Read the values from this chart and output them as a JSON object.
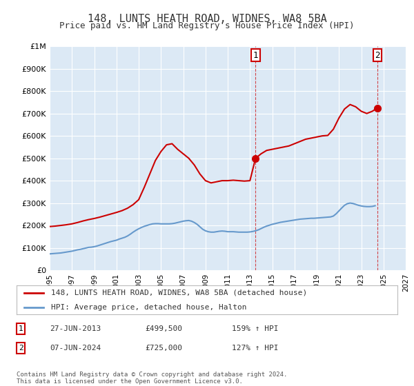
{
  "title": "148, LUNTS HEATH ROAD, WIDNES, WA8 5BA",
  "subtitle": "Price paid vs. HM Land Registry's House Price Index (HPI)",
  "legend_line1": "148, LUNTS HEATH ROAD, WIDNES, WA8 5BA (detached house)",
  "legend_line2": "HPI: Average price, detached house, Halton",
  "annotation1_label": "1",
  "annotation1_date": "27-JUN-2013",
  "annotation1_price": "£499,500",
  "annotation1_hpi": "159% ↑ HPI",
  "annotation2_label": "2",
  "annotation2_date": "07-JUN-2024",
  "annotation2_price": "£725,000",
  "annotation2_hpi": "127% ↑ HPI",
  "footer": "Contains HM Land Registry data © Crown copyright and database right 2024.\nThis data is licensed under the Open Government Licence v3.0.",
  "bg_color": "#ffffff",
  "plot_bg_color": "#dce9f5",
  "grid_color": "#ffffff",
  "red_color": "#cc0000",
  "blue_color": "#6699cc",
  "marker_color": "#cc0000",
  "xmin": 1995,
  "xmax": 2027,
  "ymin": 0,
  "ymax": 1000000,
  "yticks": [
    0,
    100000,
    200000,
    300000,
    400000,
    500000,
    600000,
    700000,
    800000,
    900000,
    1000000
  ],
  "ytick_labels": [
    "£0",
    "£100K",
    "£200K",
    "£300K",
    "£400K",
    "£500K",
    "£600K",
    "£700K",
    "£800K",
    "£900K",
    "£1M"
  ],
  "xticks": [
    1995,
    1997,
    1999,
    2001,
    2003,
    2005,
    2007,
    2009,
    2011,
    2013,
    2015,
    2017,
    2019,
    2021,
    2023,
    2025,
    2027
  ],
  "vline1_x": 2013.5,
  "vline2_x": 2024.45,
  "sale1_x": 2013.5,
  "sale1_y": 499500,
  "sale2_x": 2024.45,
  "sale2_y": 725000,
  "hpi_x": [
    1995.0,
    1995.25,
    1995.5,
    1995.75,
    1996.0,
    1996.25,
    1996.5,
    1996.75,
    1997.0,
    1997.25,
    1997.5,
    1997.75,
    1998.0,
    1998.25,
    1998.5,
    1998.75,
    1999.0,
    1999.25,
    1999.5,
    1999.75,
    2000.0,
    2000.25,
    2000.5,
    2000.75,
    2001.0,
    2001.25,
    2001.5,
    2001.75,
    2002.0,
    2002.25,
    2002.5,
    2002.75,
    2003.0,
    2003.25,
    2003.5,
    2003.75,
    2004.0,
    2004.25,
    2004.5,
    2004.75,
    2005.0,
    2005.25,
    2005.5,
    2005.75,
    2006.0,
    2006.25,
    2006.5,
    2006.75,
    2007.0,
    2007.25,
    2007.5,
    2007.75,
    2008.0,
    2008.25,
    2008.5,
    2008.75,
    2009.0,
    2009.25,
    2009.5,
    2009.75,
    2010.0,
    2010.25,
    2010.5,
    2010.75,
    2011.0,
    2011.25,
    2011.5,
    2011.75,
    2012.0,
    2012.25,
    2012.5,
    2012.75,
    2013.0,
    2013.25,
    2013.5,
    2013.75,
    2014.0,
    2014.25,
    2014.5,
    2014.75,
    2015.0,
    2015.25,
    2015.5,
    2015.75,
    2016.0,
    2016.25,
    2016.5,
    2016.75,
    2017.0,
    2017.25,
    2017.5,
    2017.75,
    2018.0,
    2018.25,
    2018.5,
    2018.75,
    2019.0,
    2019.25,
    2019.5,
    2019.75,
    2020.0,
    2020.25,
    2020.5,
    2020.75,
    2021.0,
    2021.25,
    2021.5,
    2021.75,
    2022.0,
    2022.25,
    2022.5,
    2022.75,
    2023.0,
    2023.25,
    2023.5,
    2023.75,
    2024.0,
    2024.25
  ],
  "hpi_y": [
    73000,
    74000,
    75000,
    76000,
    77000,
    79000,
    81000,
    83000,
    85000,
    88000,
    91000,
    93000,
    96000,
    99000,
    102000,
    103000,
    105000,
    108000,
    112000,
    116000,
    120000,
    124000,
    128000,
    131000,
    134000,
    139000,
    143000,
    147000,
    153000,
    161000,
    170000,
    178000,
    185000,
    191000,
    196000,
    200000,
    204000,
    207000,
    208000,
    208000,
    207000,
    207000,
    207000,
    207000,
    208000,
    210000,
    213000,
    216000,
    219000,
    221000,
    222000,
    219000,
    213000,
    205000,
    194000,
    183000,
    176000,
    172000,
    170000,
    170000,
    172000,
    174000,
    175000,
    174000,
    172000,
    172000,
    172000,
    171000,
    170000,
    170000,
    170000,
    170000,
    171000,
    173000,
    176000,
    180000,
    186000,
    192000,
    197000,
    201000,
    205000,
    208000,
    211000,
    214000,
    216000,
    218000,
    220000,
    222000,
    224000,
    226000,
    228000,
    229000,
    230000,
    231000,
    232000,
    232000,
    233000,
    234000,
    235000,
    236000,
    237000,
    238000,
    242000,
    252000,
    265000,
    278000,
    290000,
    297000,
    300000,
    298000,
    294000,
    290000,
    287000,
    285000,
    284000,
    284000,
    285000,
    288000
  ],
  "red_x": [
    1995.0,
    1995.5,
    1996.0,
    1996.5,
    1997.0,
    1997.5,
    1998.0,
    1998.5,
    1999.0,
    1999.5,
    2000.0,
    2000.5,
    2001.0,
    2001.5,
    2002.0,
    2002.5,
    2003.0,
    2003.5,
    2004.0,
    2004.5,
    2005.0,
    2005.5,
    2006.0,
    2006.5,
    2007.0,
    2007.5,
    2008.0,
    2008.5,
    2009.0,
    2009.5,
    2010.0,
    2010.5,
    2011.0,
    2011.5,
    2012.0,
    2012.5,
    2013.0,
    2013.5,
    2014.0,
    2014.5,
    2015.0,
    2015.5,
    2016.0,
    2016.5,
    2017.0,
    2017.5,
    2018.0,
    2018.5,
    2019.0,
    2019.5,
    2020.0,
    2020.5,
    2021.0,
    2021.5,
    2022.0,
    2022.5,
    2023.0,
    2023.5,
    2024.0,
    2024.45
  ],
  "red_y": [
    195000,
    197000,
    200000,
    203000,
    207000,
    213000,
    220000,
    226000,
    231000,
    237000,
    244000,
    251000,
    258000,
    266000,
    277000,
    293000,
    315000,
    370000,
    430000,
    490000,
    530000,
    560000,
    565000,
    540000,
    520000,
    500000,
    470000,
    430000,
    400000,
    390000,
    395000,
    400000,
    400000,
    402000,
    400000,
    398000,
    400000,
    499500,
    520000,
    535000,
    540000,
    545000,
    550000,
    555000,
    565000,
    575000,
    585000,
    590000,
    595000,
    600000,
    602000,
    630000,
    680000,
    720000,
    740000,
    730000,
    710000,
    700000,
    710000,
    725000
  ]
}
